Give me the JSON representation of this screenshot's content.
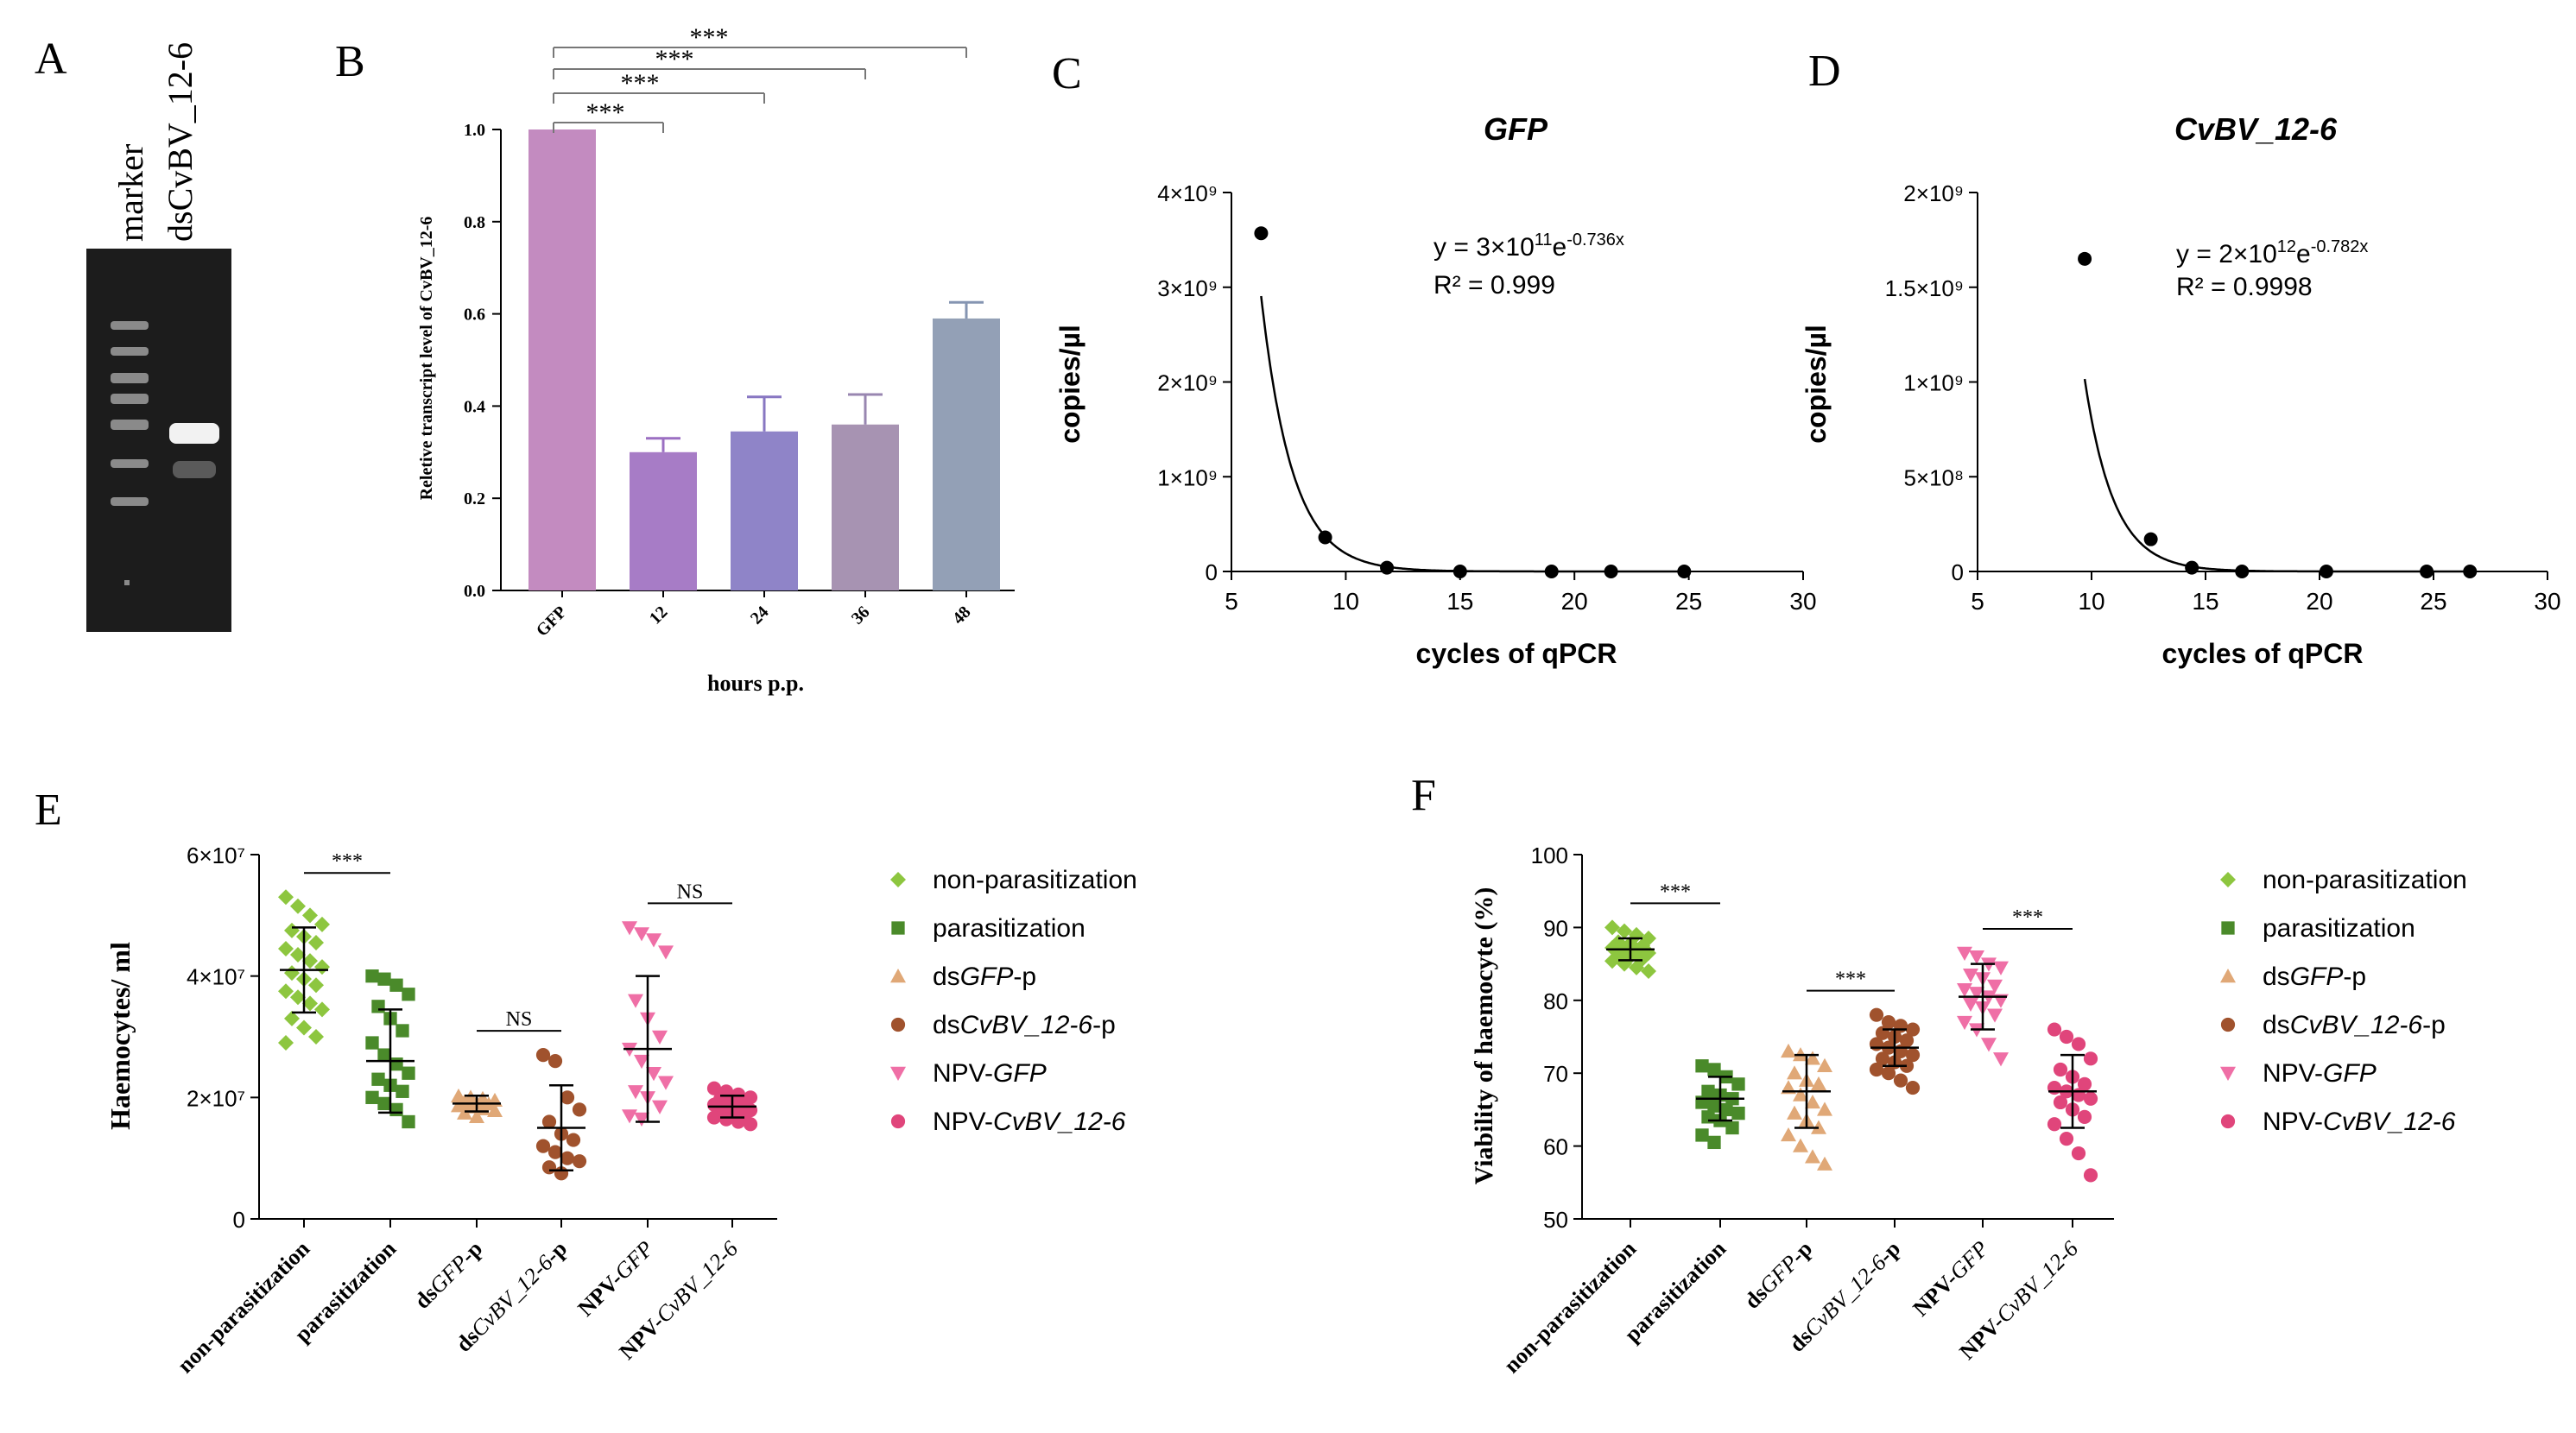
{
  "panels": {
    "A": {
      "letter": "A",
      "lane_labels": [
        "marker",
        "dsCvBV_12-6"
      ]
    },
    "B": {
      "letter": "B"
    },
    "C": {
      "letter": "C"
    },
    "D": {
      "letter": "D"
    },
    "E": {
      "letter": "E"
    },
    "F": {
      "letter": "F"
    }
  },
  "colors": {
    "non_parasitization": "#8dc63f",
    "parasitization": "#4a8a2a",
    "dsGFP_p": "#e0a877",
    "dsCvBV_p": "#a0522d",
    "NPV_GFP": "#ef6fa6",
    "NPV_CvBV": "#e0457b",
    "barB": [
      "#c38bc0",
      "#a77cc6",
      "#8f84c8",
      "#a793b2",
      "#93a0b6"
    ],
    "errB": [
      "#c38bc0",
      "#9b6fc2",
      "#8877c2",
      "#9886b0",
      "#8595b2"
    ]
  },
  "chart_data": [
    {
      "id": "B",
      "type": "bar",
      "title": "",
      "xlabel": "hours p.p.",
      "ylabel": "Reletive transcript level of CvBV_12-6",
      "categories": [
        "GFP",
        "12",
        "24",
        "36",
        "48"
      ],
      "values": [
        1.0,
        0.3,
        0.345,
        0.36,
        0.59
      ],
      "errors": [
        0,
        0.03,
        0.075,
        0.065,
        0.035
      ],
      "ylim": [
        0,
        1.0
      ],
      "yticks": [
        "0.0",
        "0.2",
        "0.4",
        "0.6",
        "0.8",
        "1.0"
      ],
      "significance": [
        {
          "from": "GFP",
          "to": "12",
          "label": "***"
        },
        {
          "from": "GFP",
          "to": "24",
          "label": "***"
        },
        {
          "from": "GFP",
          "to": "36",
          "label": "***"
        },
        {
          "from": "GFP",
          "to": "48",
          "label": "***"
        }
      ]
    },
    {
      "id": "C",
      "type": "scatter",
      "title": "GFP",
      "xlabel": "cycles of  qPCR",
      "ylabel": "copies/µl",
      "xlim": [
        5,
        30
      ],
      "ylim": [
        0,
        4000000000
      ],
      "xticks": [
        "5",
        "10",
        "15",
        "20",
        "25",
        "30"
      ],
      "yticks": [
        "0",
        "1×10⁹",
        "2×10⁹",
        "3×10⁹",
        "4×10⁹"
      ],
      "x": [
        6.3,
        9.1,
        11.8,
        15.0,
        19.0,
        21.6,
        24.8
      ],
      "y": [
        3570000000,
        360000000,
        40000000,
        0,
        0,
        0,
        0
      ],
      "fit": {
        "a": 300000000000,
        "b": -0.736
      },
      "equation_prefix": "y = 3×10",
      "equation_exp": "11",
      "equation_mid": "e",
      "equation_exp2": "-0.736x",
      "r2": "R² = 0.999"
    },
    {
      "id": "D",
      "type": "scatter",
      "title": "CvBV_12-6",
      "xlabel": "cycles of  qPCR",
      "ylabel": "copies/µl",
      "xlim": [
        5,
        30
      ],
      "ylim": [
        0,
        2000000000
      ],
      "xticks": [
        "5",
        "10",
        "15",
        "20",
        "25",
        "30"
      ],
      "yticks": [
        "0",
        "5×10⁸",
        "1×10⁹",
        "1.5×10⁹",
        "2×10⁹"
      ],
      "x": [
        9.7,
        12.6,
        14.4,
        16.6,
        20.3,
        24.7,
        26.6
      ],
      "y": [
        1650000000,
        170000000,
        20000000,
        0,
        0,
        0,
        0
      ],
      "fit": {
        "a": 2000000000000,
        "b": -0.782
      },
      "equation_prefix": "y = 2×10",
      "equation_exp": "12",
      "equation_mid": "e",
      "equation_exp2": "-0.782x",
      "r2": "R² = 0.9998"
    },
    {
      "id": "E",
      "type": "scatter",
      "title": "",
      "ylabel": "Haemocytes/ ml",
      "ylim": [
        0,
        60000000
      ],
      "yticks": [
        "0",
        "2×10⁷",
        "4×10⁷",
        "6×10⁷"
      ],
      "categories": [
        "non-parasitization",
        "parasitization",
        "dsGFP-p",
        "dsCvBV_12-6-p",
        "NPV-GFP",
        "NPV-CvBV_12-6"
      ],
      "groups": [
        {
          "mean": 41000000,
          "sd": 7000000,
          "values": [
            53000000,
            51500000,
            50000000,
            48500000,
            47500000,
            46500000,
            45500000,
            44500000,
            43500000,
            42500000,
            41500000,
            40500000,
            39500000,
            38500000,
            37500000,
            36500000,
            35500000,
            34500000,
            33000000,
            31500000,
            30000000,
            29000000
          ]
        },
        {
          "mean": 26000000,
          "sd": 8500000,
          "values": [
            40000000,
            39500000,
            38500000,
            37000000,
            35000000,
            33000000,
            31000000,
            29000000,
            27000000,
            25500000,
            24000000,
            23000000,
            22000000,
            21000000,
            20000000,
            19000000,
            18000000,
            16000000
          ]
        },
        {
          "mean": 19000000,
          "sd": 1300000,
          "values": [
            20200000,
            20000000,
            19800000,
            19500000,
            19300000,
            19100000,
            18900000,
            18600000,
            18400000,
            18100000,
            17800000,
            17400000,
            16800000
          ]
        },
        {
          "mean": 15000000,
          "sd": 7000000,
          "values": [
            27000000,
            26000000,
            20000000,
            18000000,
            16000000,
            14000000,
            13000000,
            12000000,
            11000000,
            10000000,
            9500000,
            8500000,
            7500000
          ]
        },
        {
          "mean": 28000000,
          "sd": 12000000,
          "values": [
            48000000,
            47000000,
            46000000,
            44000000,
            36000000,
            33000000,
            30000000,
            28000000,
            26000000,
            24000000,
            22500000,
            21000000,
            20000000,
            18500000,
            17000000,
            16500000
          ]
        },
        {
          "mean": 18500000,
          "sd": 1800000,
          "values": [
            21500000,
            21000000,
            20500000,
            20000000,
            19700000,
            19400000,
            19100000,
            18800000,
            18500000,
            18200000,
            17900000,
            17600000,
            17300000,
            17000000,
            16700000,
            16400000,
            16000000,
            15600000
          ]
        }
      ],
      "significance": [
        {
          "from": "non-parasitization",
          "to": "parasitization",
          "label": "***"
        },
        {
          "from": "dsGFP-p",
          "to": "dsCvBV_12-6-p",
          "label": "NS"
        },
        {
          "from": "NPV-GFP",
          "to": "NPV-CvBV_12-6",
          "label": "NS"
        }
      ]
    },
    {
      "id": "F",
      "type": "scatter",
      "title": "",
      "ylabel": "Viability of haemocyte (%)",
      "ylim": [
        50,
        100
      ],
      "yticks": [
        "50",
        "60",
        "70",
        "80",
        "90",
        "100"
      ],
      "categories": [
        "non-parasitization",
        "parasitization",
        "dsGFP-p",
        "dsCvBV_12-6-p",
        "NPV-GFP",
        "NPV-CvBV_12-6"
      ],
      "groups": [
        {
          "mean": 87,
          "sd": 1.5,
          "values": [
            90,
            89.5,
            89,
            88.5,
            88,
            87.8,
            87.5,
            87.2,
            87,
            86.8,
            86.5,
            86.2,
            86,
            85.7,
            85.4,
            85,
            84.5,
            84
          ]
        },
        {
          "mean": 66.5,
          "sd": 3,
          "values": [
            71,
            70.5,
            69.5,
            68.5,
            67.5,
            67,
            66.5,
            66,
            65.5,
            65,
            64.5,
            64,
            63.5,
            62.5,
            61.5,
            60.5
          ]
        },
        {
          "mean": 67.5,
          "sd": 5,
          "values": [
            73,
            72.5,
            72,
            71,
            70,
            69,
            68.5,
            68,
            67,
            66,
            65,
            64.5,
            63.5,
            62.5,
            61.5,
            60,
            58.5,
            57.5
          ]
        },
        {
          "mean": 73.5,
          "sd": 2.5,
          "values": [
            78,
            77,
            76.5,
            76,
            75.5,
            75,
            74.5,
            74,
            73.5,
            73,
            72.5,
            72,
            71.5,
            71,
            70.5,
            70,
            69,
            68
          ]
        },
        {
          "mean": 80.5,
          "sd": 4.5,
          "values": [
            86.5,
            86,
            85,
            84.5,
            83.5,
            83,
            82,
            81.5,
            81,
            80.5,
            80,
            79.5,
            79,
            78,
            77,
            76,
            74,
            72
          ]
        },
        {
          "mean": 67.5,
          "sd": 5,
          "values": [
            76,
            75,
            74,
            72,
            70.5,
            69.5,
            68.5,
            68,
            67.5,
            67,
            66.5,
            66,
            65,
            64,
            63,
            61,
            59,
            56
          ]
        }
      ],
      "significance": [
        {
          "from": "non-parasitization",
          "to": "parasitization",
          "label": "***"
        },
        {
          "from": "dsGFP-p",
          "to": "dsCvBV_12-6-p",
          "label": "***"
        },
        {
          "from": "NPV-GFP",
          "to": "NPV-CvBV_12-6",
          "label": "***"
        }
      ]
    }
  ],
  "legend": {
    "items": [
      {
        "prefix": "non-parasitization",
        "italic": "",
        "suffix": "",
        "marker": "diamond",
        "color_key": "non_parasitization"
      },
      {
        "prefix": "parasitization",
        "italic": "",
        "suffix": "",
        "marker": "square",
        "color_key": "parasitization"
      },
      {
        "prefix": "ds",
        "italic": "GFP",
        "suffix": "-p",
        "marker": "triangle-up",
        "color_key": "dsGFP_p"
      },
      {
        "prefix": "ds",
        "italic": "CvBV_12-6",
        "suffix": "-p",
        "marker": "circle",
        "color_key": "dsCvBV_p"
      },
      {
        "prefix": "NPV-",
        "italic": "GFP",
        "suffix": "",
        "marker": "triangle-down",
        "color_key": "NPV_GFP"
      },
      {
        "prefix": "NPV-",
        "italic": "CvBV_12-6",
        "suffix": "",
        "marker": "circle",
        "color_key": "NPV_CvBV"
      }
    ]
  },
  "group_tick_labels": [
    {
      "prefix": "non-parasitization",
      "italic": "",
      "suffix": ""
    },
    {
      "prefix": "parasitization",
      "italic": "",
      "suffix": ""
    },
    {
      "prefix": "ds",
      "italic": "GFP",
      "suffix": "-p"
    },
    {
      "prefix": "ds",
      "italic": "CvBV_12-6",
      "suffix": "-p"
    },
    {
      "prefix": "NPV-",
      "italic": "GFP",
      "suffix": ""
    },
    {
      "prefix": "NPV-",
      "italic": "CvBV_12-6",
      "suffix": ""
    }
  ]
}
